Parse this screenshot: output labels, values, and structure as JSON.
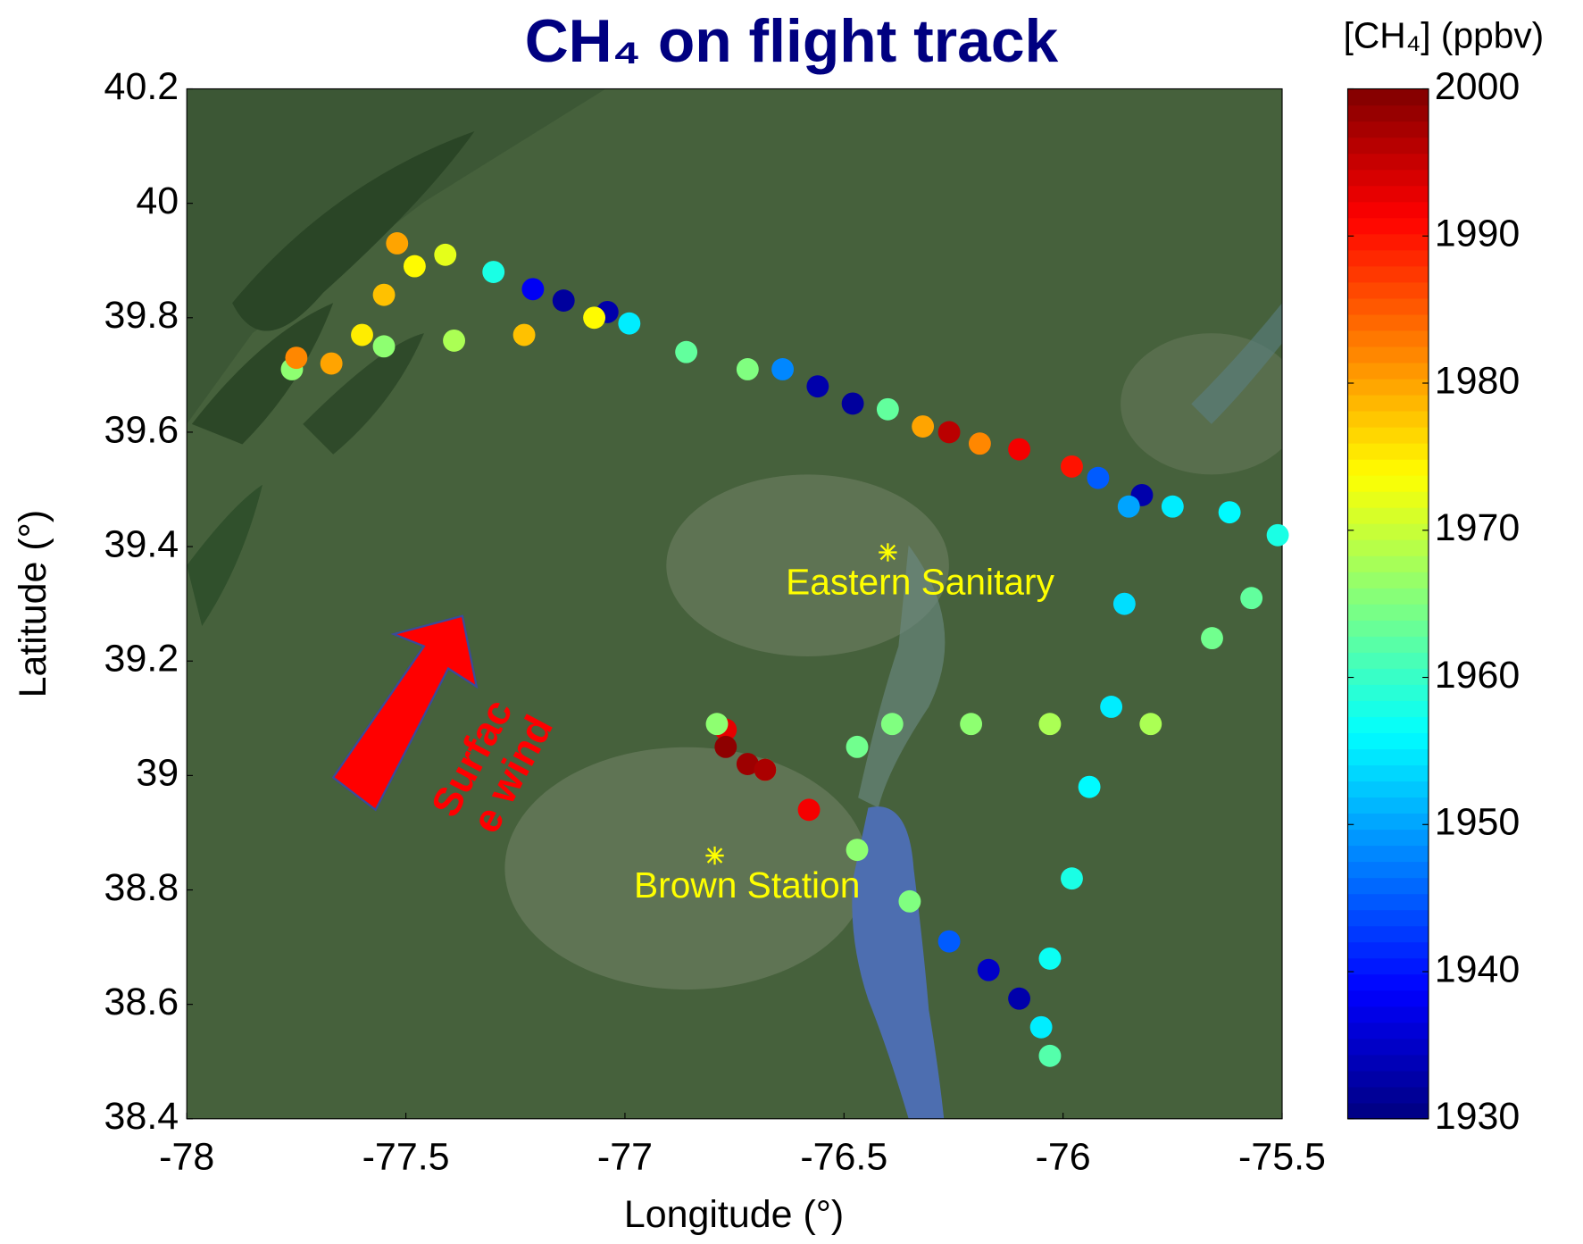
{
  "chart_data": {
    "type": "scatter",
    "title": "CH₄ on flight track",
    "xlabel": "Longitude (°)",
    "ylabel": "Latitude (°)",
    "colorbar_label": "[CH₄]  (ppbv)",
    "colormap": "jet",
    "xlim": [
      -78,
      -75.5
    ],
    "xticks": [
      -78,
      -77.5,
      -77,
      -76.5,
      -76,
      -75.5
    ],
    "ylim": [
      38.4,
      40.2
    ],
    "yticks": [
      38.4,
      38.6,
      38.8,
      39,
      39.2,
      39.4,
      39.6,
      39.8,
      40,
      40.2
    ],
    "clim": [
      1930,
      2000
    ],
    "cticks": [
      1930,
      1940,
      1950,
      1960,
      1970,
      1980,
      1990,
      2000
    ],
    "x": [
      -77.76,
      -77.75,
      -77.67,
      -77.6,
      -77.55,
      -77.52,
      -77.48,
      -77.41,
      -77.3,
      -77.21,
      -77.14,
      -77.04,
      -76.99,
      -76.86,
      -76.72,
      -76.64,
      -76.56,
      -76.48,
      -76.4,
      -76.32,
      -76.26,
      -76.19,
      -76.1,
      -75.98,
      -75.92,
      -75.82,
      -75.75,
      -75.62,
      -75.51,
      -75.57,
      -75.66,
      -75.8,
      -76.03,
      -76.21,
      -76.39,
      -76.47,
      -76.68,
      -76.72,
      -76.77,
      -76.79,
      -76.77,
      -76.68,
      -76.58,
      -76.47,
      -76.35,
      -76.26,
      -76.17,
      -76.1,
      -76.05,
      -76.03,
      -76.03,
      -75.98,
      -75.94,
      -75.89,
      -75.86,
      -75.85,
      -77.55,
      -77.39,
      -77.23,
      -77.07
    ],
    "y": [
      39.71,
      39.73,
      39.72,
      39.77,
      39.84,
      39.93,
      39.89,
      39.91,
      39.88,
      39.85,
      39.83,
      39.81,
      39.79,
      39.74,
      39.71,
      39.71,
      39.68,
      39.65,
      39.64,
      39.61,
      39.6,
      39.58,
      39.57,
      39.54,
      39.52,
      39.49,
      39.47,
      39.46,
      39.42,
      39.31,
      39.24,
      39.09,
      39.09,
      39.09,
      39.09,
      39.05,
      39.01,
      39.02,
      39.08,
      39.09,
      39.05,
      39.01,
      38.94,
      38.87,
      38.78,
      38.71,
      38.66,
      38.61,
      38.56,
      38.51,
      38.68,
      38.82,
      38.98,
      39.12,
      39.3,
      39.47,
      39.75,
      39.76,
      39.77,
      39.8
    ],
    "c": [
      1966,
      1982,
      1980,
      1975,
      1978,
      1980,
      1974,
      1972,
      1958,
      1938,
      1932,
      1933,
      1955,
      1963,
      1965,
      1948,
      1933,
      1932,
      1963,
      1980,
      1996,
      1982,
      1992,
      1990,
      1945,
      1933,
      1955,
      1956,
      1958,
      1963,
      1964,
      1968,
      1968,
      1966,
      1965,
      1964,
      1965,
      1998,
      1993,
      1966,
      1999,
      1997,
      1992,
      1966,
      1965,
      1945,
      1935,
      1933,
      1955,
      1962,
      1957,
      1958,
      1956,
      1955,
      1954,
      1950,
      1966,
      1968,
      1978,
      1974
    ],
    "sites": [
      {
        "name": "Eastern Sanitary",
        "lon": -76.4,
        "lat": 39.39
      },
      {
        "name": "Brown Station",
        "lon": -76.795,
        "lat": 38.86
      }
    ],
    "wind_label": [
      "Surfac",
      "e wind"
    ]
  }
}
